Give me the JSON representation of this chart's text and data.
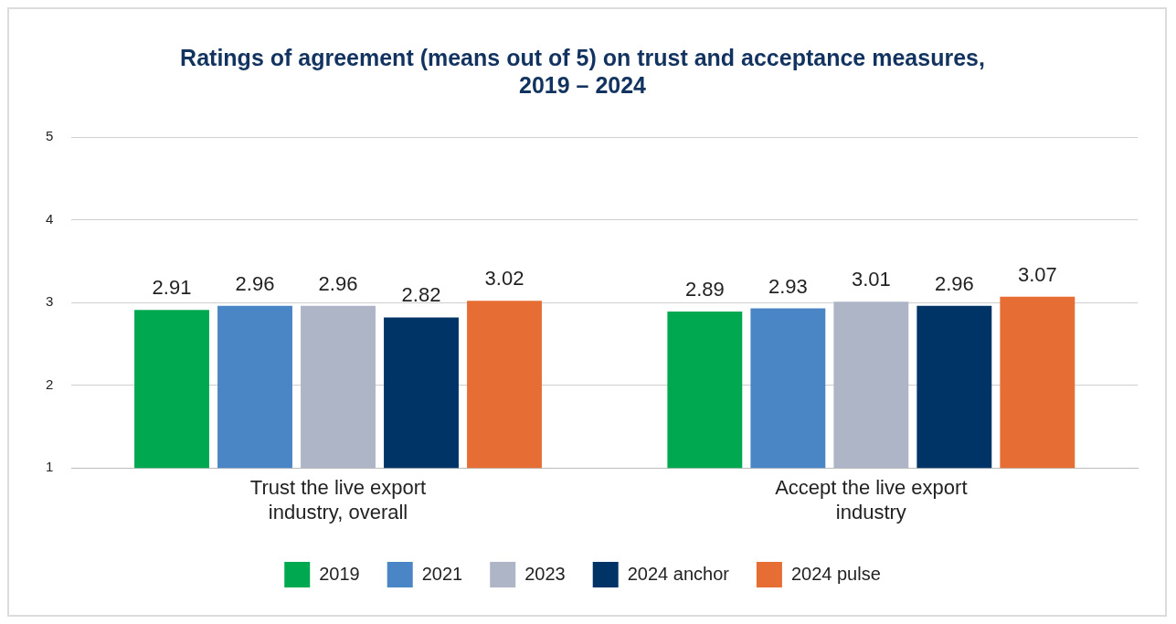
{
  "chart_data": {
    "type": "bar",
    "title": "Ratings of agreement (means out of 5) on trust and acceptance measures, 2019 – 2024",
    "categories": [
      "Trust the live export industry, overall",
      "Accept the live export industry"
    ],
    "series": [
      {
        "name": "2019",
        "color": "#00a94f",
        "values": [
          2.91,
          2.89
        ]
      },
      {
        "name": "2021",
        "color": "#4a86c5",
        "values": [
          2.96,
          2.93
        ]
      },
      {
        "name": "2023",
        "color": "#adb5c7",
        "values": [
          2.96,
          3.01
        ]
      },
      {
        "name": "2024 anchor",
        "color": "#003366",
        "values": [
          2.82,
          2.96
        ]
      },
      {
        "name": "2024 pulse",
        "color": "#e66e35",
        "values": [
          3.02,
          3.07
        ]
      }
    ],
    "ylim": [
      1,
      5
    ],
    "yticks": [
      1,
      2,
      3,
      4,
      5
    ],
    "grid": "y",
    "legend": "bottom",
    "data_labels": true
  }
}
